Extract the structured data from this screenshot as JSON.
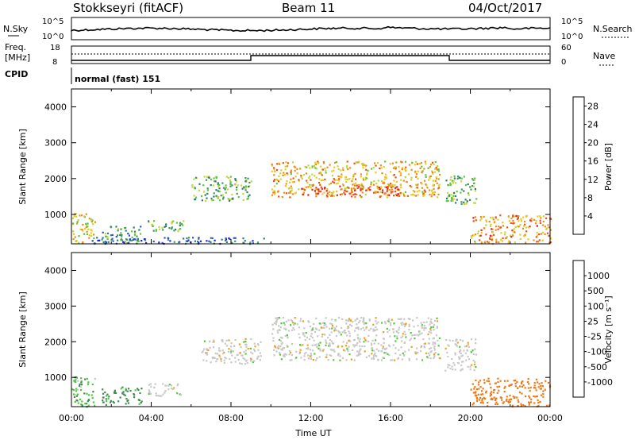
{
  "header": {
    "station": "Stokkseyri (fitACF)",
    "beam": "Beam 11",
    "date": "04/Oct/2017"
  },
  "noise_panel": {
    "left_label": "N.Sky",
    "left_ticks": [
      "10^5",
      "10^0"
    ],
    "right_ticks": [
      "10^5",
      "10^0"
    ],
    "right_label": "N.Search"
  },
  "freq_panel": {
    "left_label_line1": "Freq.",
    "left_label_line2": "[MHz]",
    "left_ticks": [
      "18",
      "8"
    ],
    "right_ticks": [
      "60",
      "0"
    ],
    "right_label": "Nave"
  },
  "cpid": {
    "label": "CPID",
    "value": "normal (fast) 151"
  },
  "chart_data": [
    {
      "type": "heatmap",
      "quantity": "Power",
      "ylabel": "Slant Range [km]",
      "xlabel": "Time UT",
      "ylim": [
        180,
        4500
      ],
      "y_ticks": [
        "1000",
        "2000",
        "3000",
        "4000"
      ],
      "x_ticks": [
        "00:00",
        "04:00",
        "08:00",
        "12:00",
        "16:00",
        "20:00",
        "00:00"
      ],
      "colorbar_label": "Power [dB]",
      "colorbar_ticks": [
        "4",
        "8",
        "12",
        "16",
        "20",
        "24",
        "28"
      ],
      "colorbar_colors": [
        "#1e1ef0",
        "#2a55c8",
        "#2e7c6a",
        "#3c9a5a",
        "#5ac83c",
        "#c8d23c",
        "#f0c814",
        "#f08c14",
        "#f05014",
        "#e61e1e"
      ],
      "regions": [
        {
          "t0": 0.0,
          "t1": 1.2,
          "r0": 200,
          "r1": 1050,
          "v": 18
        },
        {
          "t0": 1.5,
          "t1": 3.5,
          "r0": 250,
          "r1": 700,
          "v": 10
        },
        {
          "t0": 3.8,
          "t1": 5.6,
          "r0": 500,
          "r1": 850,
          "v": 12
        },
        {
          "t0": 1.0,
          "t1": 10.0,
          "r0": 200,
          "r1": 380,
          "v": 6
        },
        {
          "t0": 6.0,
          "t1": 9.0,
          "r0": 1400,
          "r1": 2100,
          "v": 12
        },
        {
          "t0": 10.0,
          "t1": 18.5,
          "r0": 1500,
          "r1": 2500,
          "v": 20
        },
        {
          "t0": 11.5,
          "t1": 16.5,
          "r0": 1550,
          "r1": 1850,
          "v": 26
        },
        {
          "t0": 18.7,
          "t1": 20.3,
          "r0": 1300,
          "r1": 2100,
          "v": 12
        },
        {
          "t0": 20.0,
          "t1": 24.0,
          "r0": 200,
          "r1": 1000,
          "v": 22
        }
      ]
    },
    {
      "type": "heatmap",
      "quantity": "Velocity",
      "ylabel": "Slant Range [km]",
      "xlabel": "Time UT",
      "ylim": [
        180,
        4500
      ],
      "y_ticks": [
        "1000",
        "2000",
        "3000",
        "4000"
      ],
      "x_ticks": [
        "00:00",
        "04:00",
        "08:00",
        "12:00",
        "16:00",
        "20:00",
        "00:00"
      ],
      "colorbar_label": "Velocity [m s⁻¹]",
      "colorbar_ticks": [
        "1000",
        "500",
        "100",
        "25",
        "-25",
        "-100",
        "-500",
        "-1000"
      ],
      "colorbar_colors": [
        "#2850dc",
        "#3c64c8",
        "#3c8c50",
        "#50c83c",
        "#c8c8c8",
        "#c8c8c8",
        "#f0a014",
        "#f07814",
        "#f03c1e",
        "#e61414"
      ],
      "regions": [
        {
          "t0": 0.0,
          "t1": 1.2,
          "r0": 200,
          "r1": 1050,
          "v": 50
        },
        {
          "t0": 1.5,
          "t1": 3.5,
          "r0": 250,
          "r1": 750,
          "v": 80
        },
        {
          "t0": 3.8,
          "t1": 5.6,
          "r0": 500,
          "r1": 850,
          "v": 0
        },
        {
          "t0": 6.5,
          "t1": 9.5,
          "r0": 1400,
          "r1": 2100,
          "v": 0
        },
        {
          "t0": 10.0,
          "t1": 18.5,
          "r0": 1500,
          "r1": 2700,
          "v": 0
        },
        {
          "t0": 18.7,
          "t1": 20.3,
          "r0": 1200,
          "r1": 2100,
          "v": 0
        },
        {
          "t0": 20.0,
          "t1": 24.0,
          "r0": 200,
          "r1": 1000,
          "v": -200
        }
      ]
    }
  ]
}
